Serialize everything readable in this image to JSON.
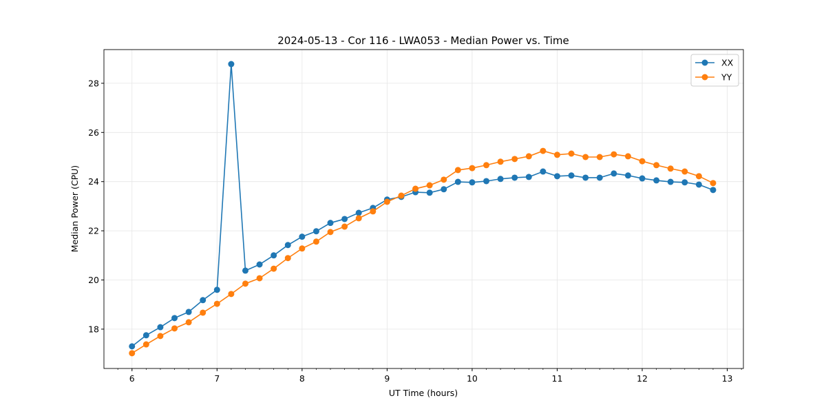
{
  "chart_data": {
    "type": "line",
    "title": "2024-05-13 - Cor 116 - LWA053 - Median Power vs. Time",
    "xlabel": "UT Time (hours)",
    "ylabel": "Median Power (CPU)",
    "xlim": [
      5.67,
      13.19
    ],
    "ylim": [
      16.4,
      29.37
    ],
    "xticks": [
      6,
      7,
      8,
      9,
      10,
      11,
      12,
      13
    ],
    "yticks": [
      18,
      20,
      22,
      24,
      26,
      28
    ],
    "grid": true,
    "legend_position": "top-right",
    "x_start": 6,
    "x_step_hours": 0.16667,
    "series": [
      {
        "name": "XX",
        "color": "#1f77b4",
        "values": [
          17.3,
          17.75,
          18.08,
          18.45,
          18.7,
          19.18,
          19.6,
          28.78,
          20.38,
          20.63,
          21.0,
          21.42,
          21.76,
          21.98,
          22.32,
          22.48,
          22.73,
          22.93,
          23.27,
          23.38,
          23.57,
          23.55,
          23.69,
          23.99,
          23.97,
          24.02,
          24.11,
          24.16,
          24.19,
          24.41,
          24.22,
          24.25,
          24.16,
          24.16,
          24.33,
          24.25,
          24.13,
          24.05,
          23.99,
          23.97,
          23.88,
          23.66
        ]
      },
      {
        "name": "YY",
        "color": "#ff7f0e",
        "values": [
          17.02,
          17.38,
          17.72,
          18.03,
          18.28,
          18.67,
          19.03,
          19.43,
          19.85,
          20.07,
          20.46,
          20.89,
          21.28,
          21.56,
          21.95,
          22.17,
          22.51,
          22.79,
          23.18,
          23.43,
          23.71,
          23.85,
          24.08,
          24.47,
          24.55,
          24.67,
          24.81,
          24.92,
          25.03,
          25.25,
          25.09,
          25.14,
          25.0,
          25.0,
          25.11,
          25.03,
          24.83,
          24.67,
          24.53,
          24.41,
          24.22,
          23.94
        ]
      }
    ]
  }
}
